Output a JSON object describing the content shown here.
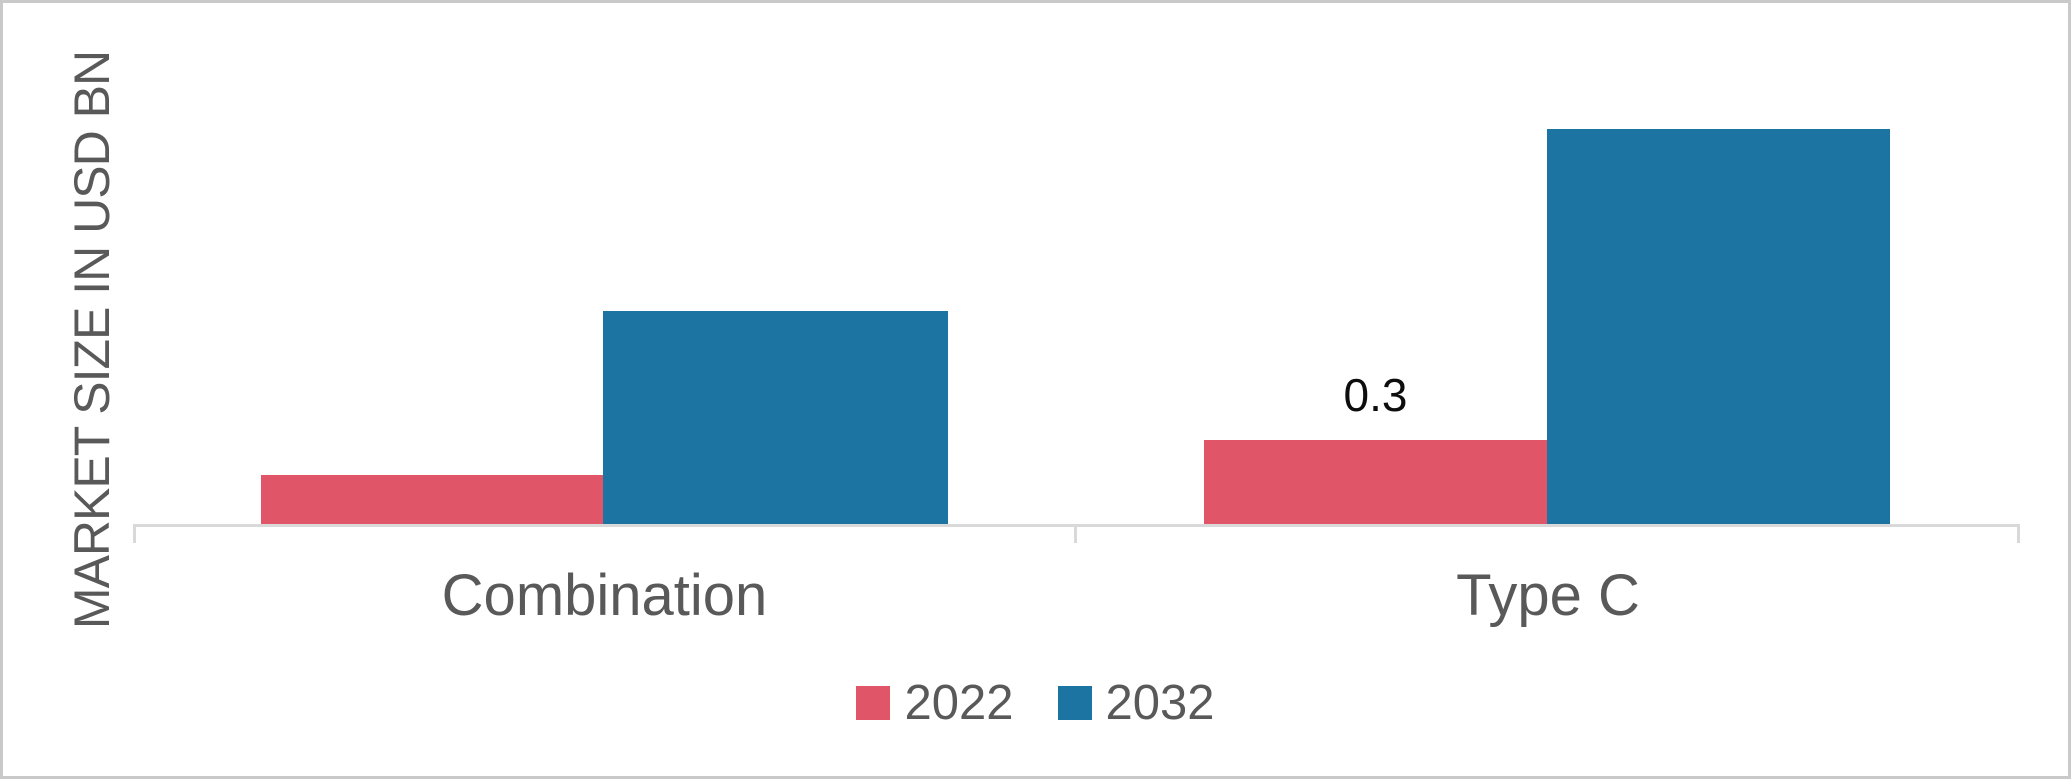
{
  "chart_data": {
    "type": "bar",
    "title": "",
    "categories": [
      "Combination",
      "Type C"
    ],
    "series": [
      {
        "name": "2022",
        "color": "#e05567",
        "values": [
          0.175,
          0.3
        ]
      },
      {
        "name": "2032",
        "color": "#1c74a3",
        "values": [
          0.76,
          1.41
        ]
      }
    ],
    "xlabel": "",
    "ylabel": "MARKET SIZE IN USD BN",
    "ylim": [
      0,
      1.75
    ],
    "grid": false,
    "legend_position": "bottom",
    "data_labels": [
      {
        "category": "Type C",
        "series": "2022",
        "text": "0.3"
      }
    ]
  },
  "colors": {
    "series_2022": "#e05567",
    "series_2032": "#1c74a3",
    "axis_line": "#d9d9d9",
    "label_text": "#595959",
    "data_label_text": "#0d0d0d",
    "page_border": "#c9c9c9",
    "background": "#ffffff"
  }
}
